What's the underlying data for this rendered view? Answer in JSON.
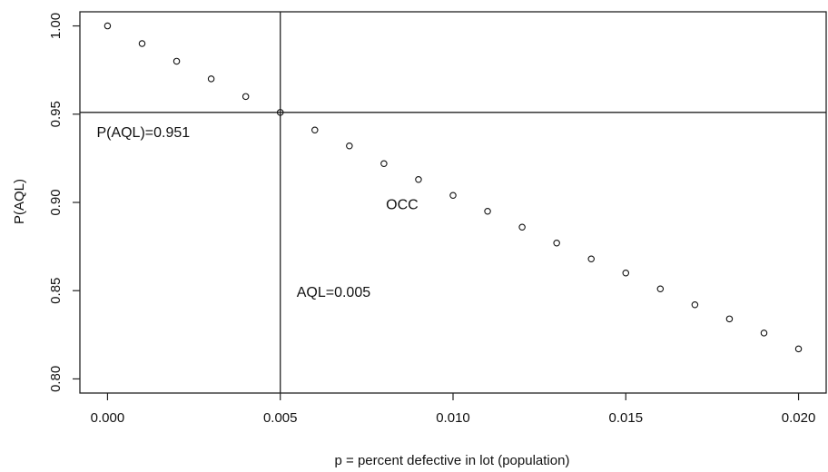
{
  "chart_data": {
    "type": "scatter",
    "title": "",
    "xlabel": "p = percent defective in lot (population)",
    "ylabel": "P(AQL)",
    "xlim": [
      -0.0008,
      0.0208
    ],
    "ylim": [
      0.792,
      1.008
    ],
    "x_ticks": [
      0.0,
      0.005,
      0.01,
      0.015,
      0.02
    ],
    "x_tick_labels": [
      "0.000",
      "0.005",
      "0.010",
      "0.015",
      "0.020"
    ],
    "y_ticks": [
      0.8,
      0.85,
      0.9,
      0.95,
      1.0
    ],
    "y_tick_labels": [
      "0.80",
      "0.85",
      "0.90",
      "0.95",
      "1.00"
    ],
    "grid": false,
    "marker": "open-circle",
    "points": [
      {
        "x": 0.0,
        "y": 1.0
      },
      {
        "x": 0.001,
        "y": 0.99
      },
      {
        "x": 0.002,
        "y": 0.98
      },
      {
        "x": 0.003,
        "y": 0.97
      },
      {
        "x": 0.004,
        "y": 0.96
      },
      {
        "x": 0.005,
        "y": 0.951
      },
      {
        "x": 0.006,
        "y": 0.941
      },
      {
        "x": 0.007,
        "y": 0.932
      },
      {
        "x": 0.008,
        "y": 0.922
      },
      {
        "x": 0.009,
        "y": 0.913
      },
      {
        "x": 0.01,
        "y": 0.904
      },
      {
        "x": 0.011,
        "y": 0.895
      },
      {
        "x": 0.012,
        "y": 0.886
      },
      {
        "x": 0.013,
        "y": 0.877
      },
      {
        "x": 0.014,
        "y": 0.868
      },
      {
        "x": 0.015,
        "y": 0.86
      },
      {
        "x": 0.016,
        "y": 0.851
      },
      {
        "x": 0.017,
        "y": 0.842
      },
      {
        "x": 0.018,
        "y": 0.834
      },
      {
        "x": 0.019,
        "y": 0.826
      },
      {
        "x": 0.02,
        "y": 0.817
      }
    ],
    "reference_lines": [
      {
        "orientation": "vertical",
        "value": 0.005
      },
      {
        "orientation": "horizontal",
        "value": 0.951
      }
    ],
    "annotations": [
      {
        "text": "P(AQL)=0.951",
        "x": 0.0,
        "y": 0.951
      },
      {
        "text": "OCC",
        "x": 0.009,
        "y": 0.913
      },
      {
        "text": "AQL=0.005",
        "x": 0.005,
        "y": 0.85
      }
    ]
  }
}
